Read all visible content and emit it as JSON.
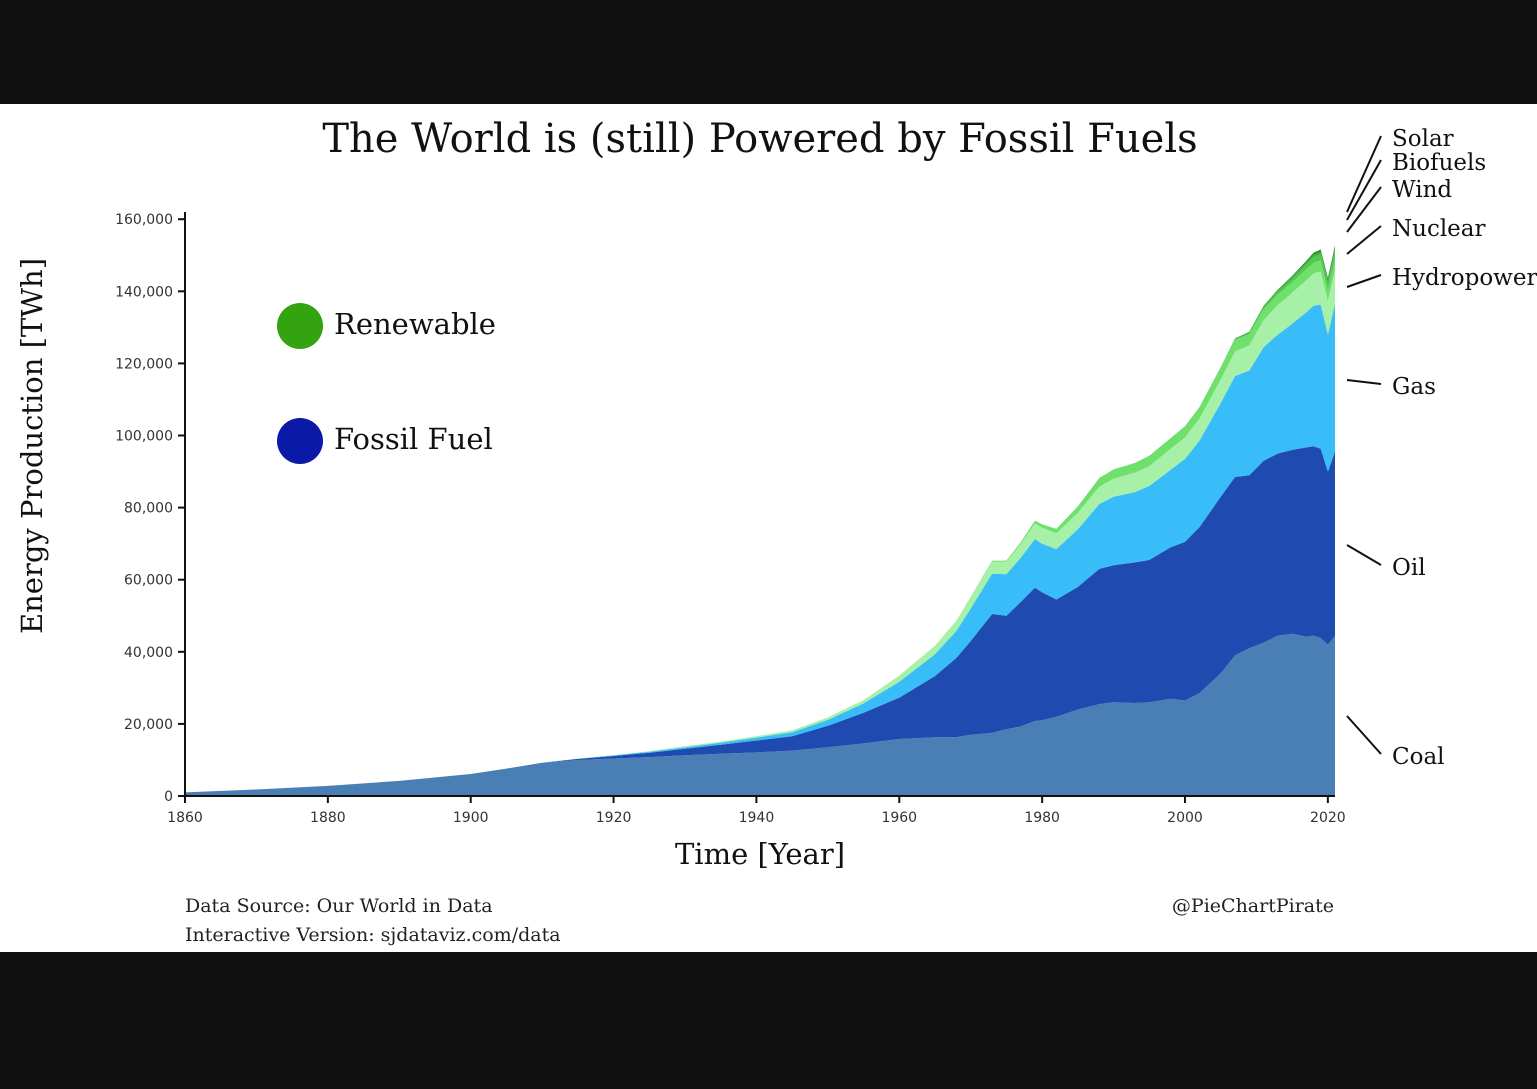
{
  "title": "The World is (still) Powered by Fossil Fuels",
  "legend_groups": [
    {
      "label": "Renewable",
      "color": "#33a30f"
    },
    {
      "label": "Fossil Fuel",
      "color": "#0a1aa6"
    }
  ],
  "footer": {
    "source": "Data Source: Our World in Data",
    "interactive": "Interactive Version: sjdataviz.com/data",
    "credit": "@PieChartPirate"
  },
  "colors": {
    "Coal": "#4a7fb5",
    "Oil": "#1f4bb0",
    "Gas": "#38bdf8",
    "Hydropower": "#a7f0a7",
    "Nuclear": "#6fe06b",
    "Wind": "#4fc94f",
    "Biofuels": "#3aae3a",
    "Solar": "#2e8f2e"
  },
  "chart_data": {
    "type": "area",
    "stacked": true,
    "xlabel": "Time [Year]",
    "ylabel": "Energy Production [TWh]",
    "xlim": [
      1860,
      2021
    ],
    "ylim": [
      0,
      162000
    ],
    "x_ticks": [
      1860,
      1880,
      1900,
      1920,
      1940,
      1960,
      1980,
      2000,
      2020
    ],
    "y_ticks": [
      0,
      20000,
      40000,
      60000,
      80000,
      100000,
      120000,
      140000,
      160000
    ],
    "y_tick_labels": [
      "0",
      "20,000",
      "40,000",
      "60,000",
      "80,000",
      "100,000",
      "120,000",
      "140,000",
      "160,000"
    ],
    "x": [
      1860,
      1870,
      1880,
      1890,
      1900,
      1905,
      1910,
      1915,
      1920,
      1925,
      1930,
      1935,
      1940,
      1945,
      1950,
      1955,
      1960,
      1965,
      1968,
      1970,
      1973,
      1975,
      1977,
      1979,
      1980,
      1982,
      1985,
      1988,
      1990,
      1993,
      1995,
      1998,
      2000,
      2002,
      2005,
      2007,
      2009,
      2011,
      2013,
      2015,
      2017,
      2018,
      2019,
      2020,
      2021
    ],
    "series": [
      {
        "name": "Coal",
        "values": [
          1000,
          1800,
          2800,
          4200,
          6100,
          7600,
          9200,
          10000,
          10400,
          10800,
          11300,
          11700,
          12100,
          12600,
          13500,
          14600,
          15800,
          16300,
          16300,
          17000,
          17500,
          18500,
          19300,
          20800,
          21000,
          22000,
          24000,
          25500,
          26000,
          25800,
          26000,
          27000,
          26500,
          28500,
          34000,
          39000,
          41000,
          42500,
          44500,
          45000,
          44200,
          44500,
          43800,
          42000,
          44500
        ]
      },
      {
        "name": "Oil",
        "values": [
          0,
          0,
          0,
          0,
          0,
          0,
          0,
          300,
          700,
          1200,
          1800,
          2500,
          3300,
          4000,
          6000,
          8500,
          11500,
          17000,
          22000,
          26000,
          33000,
          31500,
          34500,
          37000,
          35500,
          32500,
          34000,
          37500,
          38000,
          39000,
          39500,
          42000,
          44000,
          46000,
          49000,
          49500,
          48000,
          50500,
          50500,
          51000,
          52500,
          52500,
          52500,
          48000,
          51000
        ]
      },
      {
        "name": "Gas",
        "values": [
          0,
          0,
          0,
          0,
          0,
          0,
          0,
          50,
          150,
          300,
          450,
          600,
          800,
          1100,
          1600,
          2600,
          4400,
          6000,
          7500,
          9000,
          11200,
          11500,
          12300,
          13500,
          13500,
          14000,
          16000,
          18000,
          19000,
          19500,
          20500,
          21500,
          23000,
          24000,
          26000,
          28000,
          29000,
          31500,
          33000,
          35000,
          37500,
          39000,
          40000,
          38000,
          41000
        ]
      },
      {
        "name": "Hydropower",
        "values": [
          0,
          0,
          0,
          0,
          0,
          0,
          0,
          50,
          100,
          150,
          250,
          300,
          400,
          500,
          700,
          900,
          1700,
          2400,
          2800,
          3100,
          3300,
          3500,
          3800,
          4300,
          4400,
          4400,
          4600,
          4800,
          5000,
          5400,
          5500,
          5800,
          6000,
          6100,
          6500,
          6800,
          7000,
          7500,
          8200,
          8600,
          8900,
          9000,
          9200,
          9400,
          9400
        ]
      },
      {
        "name": "Nuclear",
        "values": [
          0,
          0,
          0,
          0,
          0,
          0,
          0,
          0,
          0,
          0,
          0,
          0,
          0,
          0,
          0,
          0,
          0,
          0,
          50,
          100,
          250,
          300,
          500,
          800,
          1000,
          1200,
          1800,
          2400,
          2600,
          2700,
          2900,
          3000,
          3000,
          3100,
          3200,
          3200,
          3100,
          3000,
          2900,
          2900,
          3000,
          3000,
          3000,
          2900,
          3000
        ]
      },
      {
        "name": "Wind",
        "values": [
          0,
          0,
          0,
          0,
          0,
          0,
          0,
          0,
          0,
          0,
          0,
          0,
          0,
          0,
          0,
          0,
          0,
          0,
          0,
          0,
          0,
          0,
          0,
          0,
          0,
          0,
          0,
          0,
          0,
          0,
          0,
          0,
          0,
          50,
          150,
          250,
          350,
          550,
          800,
          1000,
          1400,
          1600,
          1800,
          2000,
          2200
        ]
      },
      {
        "name": "Biofuels",
        "values": [
          0,
          0,
          0,
          0,
          0,
          0,
          0,
          0,
          0,
          0,
          0,
          0,
          0,
          0,
          0,
          0,
          0,
          0,
          0,
          0,
          0,
          0,
          0,
          0,
          0,
          0,
          0,
          0,
          0,
          0,
          0,
          0,
          50,
          60,
          100,
          180,
          300,
          350,
          400,
          450,
          500,
          550,
          600,
          580,
          600
        ]
      },
      {
        "name": "Solar",
        "values": [
          0,
          0,
          0,
          0,
          0,
          0,
          0,
          0,
          0,
          0,
          0,
          0,
          0,
          0,
          0,
          0,
          0,
          0,
          0,
          0,
          0,
          0,
          0,
          0,
          0,
          0,
          0,
          0,
          0,
          0,
          0,
          0,
          0,
          0,
          0,
          20,
          50,
          100,
          200,
          300,
          500,
          600,
          700,
          850,
          1000
        ]
      }
    ]
  }
}
